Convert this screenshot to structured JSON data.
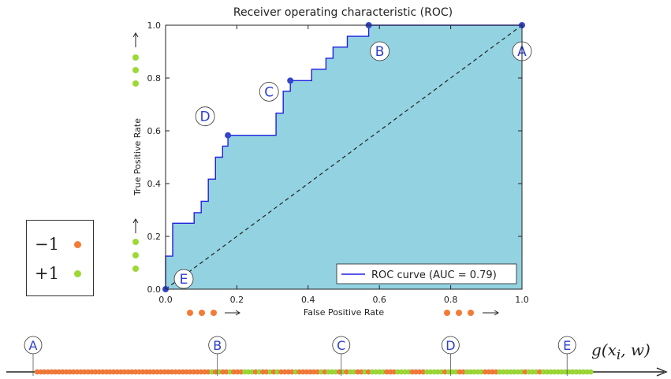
{
  "chart_data": {
    "type": "line",
    "title": "Receiver operating characteristic (ROC)",
    "xlabel": "False Positive Rate",
    "ylabel": "True Positive Rate",
    "xlim": [
      0,
      1
    ],
    "ylim": [
      0,
      1
    ],
    "x_ticks": [
      "0.0",
      "0.2",
      "0.4",
      "0.6",
      "0.8",
      "1.0"
    ],
    "y_ticks": [
      "0.0",
      "0.2",
      "0.4",
      "0.6",
      "0.8",
      "1.0"
    ],
    "fill_color": "#93d2e1",
    "line_color": "#2020e0",
    "series": [
      {
        "name": "ROC curve (AUC = 0.79)",
        "points": [
          [
            0.0,
            0.0
          ],
          [
            0.0,
            0.125
          ],
          [
            0.02,
            0.125
          ],
          [
            0.02,
            0.25
          ],
          [
            0.08,
            0.25
          ],
          [
            0.08,
            0.29
          ],
          [
            0.1,
            0.29
          ],
          [
            0.1,
            0.333
          ],
          [
            0.12,
            0.333
          ],
          [
            0.12,
            0.417
          ],
          [
            0.14,
            0.417
          ],
          [
            0.14,
            0.5
          ],
          [
            0.16,
            0.5
          ],
          [
            0.16,
            0.542
          ],
          [
            0.175,
            0.542
          ],
          [
            0.175,
            0.583
          ],
          [
            0.31,
            0.583
          ],
          [
            0.31,
            0.667
          ],
          [
            0.33,
            0.667
          ],
          [
            0.33,
            0.75
          ],
          [
            0.35,
            0.75
          ],
          [
            0.35,
            0.79
          ],
          [
            0.41,
            0.79
          ],
          [
            0.41,
            0.833
          ],
          [
            0.45,
            0.833
          ],
          [
            0.45,
            0.875
          ],
          [
            0.47,
            0.875
          ],
          [
            0.47,
            0.917
          ],
          [
            0.51,
            0.917
          ],
          [
            0.51,
            0.958
          ],
          [
            0.57,
            0.958
          ],
          [
            0.57,
            1.0
          ],
          [
            1.0,
            1.0
          ]
        ]
      }
    ],
    "diagonal": [
      [
        0,
        0
      ],
      [
        1,
        1
      ]
    ],
    "markers": [
      {
        "label": "A",
        "x": 1.0,
        "y": 1.0
      },
      {
        "label": "B",
        "x": 0.57,
        "y": 1.0
      },
      {
        "label": "C",
        "x": 0.35,
        "y": 0.79
      },
      {
        "label": "D",
        "x": 0.175,
        "y": 0.583
      },
      {
        "label": "E",
        "x": 0.0,
        "y": 0.0
      }
    ],
    "legend_placement": "lower-right",
    "grid": false
  },
  "class_legend": {
    "neg_label": "−1",
    "pos_label": "+1",
    "neg_color": "#f47b37",
    "pos_color": "#9dd934"
  },
  "score_axis": {
    "label": "g(x_i, w)",
    "sequence": "nnnnnnnnnnnnnnnnnnnnnnnnnnnnnnnnnnnnnnnnnnnnnnnnpnpnnpnnnpppnpnnpnpnnnnpnnnnnnpnpppnpnppnnpnppppnnnppppnnnnpppppnpppnnpppppnnnnpppppppnpppnpppppppppppppp",
    "threshold_labels": [
      "A",
      "B",
      "C",
      "D",
      "E"
    ],
    "threshold_positions": [
      0,
      50,
      84,
      114,
      146
    ]
  }
}
